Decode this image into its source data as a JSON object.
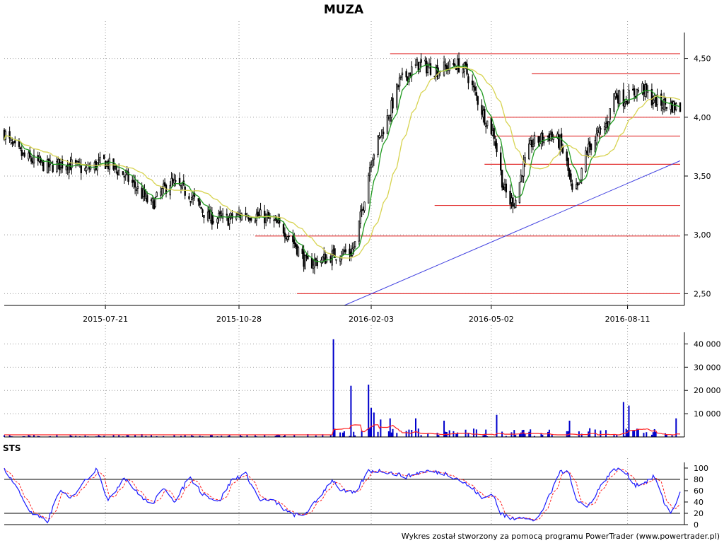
{
  "title": "MUZA",
  "footer": "Wykres został stworzony za pomocą programu PowerTrader (www.powertrader.pl)",
  "colors": {
    "candle": "#000000",
    "sma_fast": "#1f9a1f",
    "sma_slow": "#d7d350",
    "resistance": "#e23030",
    "trendline": "#4040e0",
    "volume_bar": "#0000cc",
    "volume_avg": "#ff2020",
    "sts_k": "#1a1aff",
    "sts_d": "#ff2020",
    "grid": "#999999"
  },
  "chart_data": [
    {
      "id": "price",
      "type": "candlestick",
      "title": "MUZA",
      "x_range": [
        "2015-05-07",
        "2016-09-19"
      ],
      "x_ticks": [
        "2015-07-21",
        "2015-10-28",
        "2016-02-03",
        "2016-05-02",
        "2016-08-11"
      ],
      "ylim": [
        2.4,
        4.72
      ],
      "y_ticks": [
        2.5,
        3.0,
        3.5,
        4.0,
        4.5
      ],
      "y_tick_labels": [
        "2,50",
        "3,00",
        "3,50",
        "4,00",
        "4,50"
      ],
      "grid": true,
      "close_keypoints": [
        [
          "2015-05-07",
          3.87
        ],
        [
          "2015-05-13",
          3.75
        ],
        [
          "2015-05-22",
          3.66
        ],
        [
          "2015-06-08",
          3.58
        ],
        [
          "2015-06-22",
          3.61
        ],
        [
          "2015-07-06",
          3.55
        ],
        [
          "2015-07-20",
          3.62
        ],
        [
          "2015-08-03",
          3.52
        ],
        [
          "2015-08-13",
          3.4
        ],
        [
          "2015-08-24",
          3.25
        ],
        [
          "2015-09-07",
          3.45
        ],
        [
          "2015-09-21",
          3.35
        ],
        [
          "2015-10-05",
          3.15
        ],
        [
          "2015-10-19",
          3.13
        ],
        [
          "2015-11-02",
          3.18
        ],
        [
          "2015-11-16",
          3.15
        ],
        [
          "2015-11-30",
          3.05
        ],
        [
          "2015-12-07",
          2.95
        ],
        [
          "2015-12-17",
          2.75
        ],
        [
          "2015-12-31",
          2.8
        ],
        [
          "2016-01-11",
          2.85
        ],
        [
          "2016-01-19",
          2.85
        ],
        [
          "2016-01-22",
          2.92
        ],
        [
          "2016-01-27",
          3.2
        ],
        [
          "2016-02-03",
          3.65
        ],
        [
          "2016-02-10",
          3.85
        ],
        [
          "2016-02-17",
          4.05
        ],
        [
          "2016-02-24",
          4.3
        ],
        [
          "2016-03-09",
          4.45
        ],
        [
          "2016-03-23",
          4.4
        ],
        [
          "2016-04-06",
          4.45
        ],
        [
          "2016-04-13",
          4.4
        ],
        [
          "2016-04-20",
          4.2
        ],
        [
          "2016-04-27",
          4.0
        ],
        [
          "2016-05-04",
          3.85
        ],
        [
          "2016-05-11",
          3.4
        ],
        [
          "2016-05-16",
          3.28
        ],
        [
          "2016-05-20",
          3.3
        ],
        [
          "2016-05-25",
          3.55
        ],
        [
          "2016-06-01",
          3.78
        ],
        [
          "2016-06-15",
          3.85
        ],
        [
          "2016-06-22",
          3.78
        ],
        [
          "2016-06-27",
          3.6
        ],
        [
          "2016-07-01",
          3.35
        ],
        [
          "2016-07-06",
          3.4
        ],
        [
          "2016-07-11",
          3.7
        ],
        [
          "2016-07-20",
          3.85
        ],
        [
          "2016-07-27",
          3.95
        ],
        [
          "2016-08-01",
          4.2
        ],
        [
          "2016-08-08",
          4.15
        ],
        [
          "2016-08-15",
          4.2
        ],
        [
          "2016-08-22",
          4.25
        ],
        [
          "2016-08-29",
          4.15
        ],
        [
          "2016-09-05",
          4.12
        ],
        [
          "2016-09-12",
          4.1
        ],
        [
          "2016-09-19",
          4.08
        ]
      ],
      "horizontal_levels": [
        {
          "y": 4.54,
          "from": "2016-02-17",
          "to": "2016-09-19"
        },
        {
          "y": 4.37,
          "from": "2016-06-01",
          "to": "2016-09-19"
        },
        {
          "y": 4.0,
          "from": "2016-04-29",
          "to": "2016-09-19"
        },
        {
          "y": 3.84,
          "from": "2016-05-04",
          "to": "2016-09-19"
        },
        {
          "y": 3.6,
          "from": "2016-04-27",
          "to": "2016-09-19"
        },
        {
          "y": 3.25,
          "from": "2016-03-21",
          "to": "2016-09-19"
        },
        {
          "y": 2.99,
          "from": "2015-11-09",
          "to": "2016-09-19"
        },
        {
          "y": 2.5,
          "from": "2015-12-10",
          "to": "2016-09-19"
        }
      ],
      "trendline": {
        "from": [
          "2016-01-14",
          2.4
        ],
        "to": [
          "2016-09-19",
          3.63
        ]
      }
    },
    {
      "id": "volume",
      "type": "bar",
      "ylim": [
        0,
        45000
      ],
      "y_ticks": [
        10000,
        20000,
        30000,
        40000
      ],
      "y_tick_labels": [
        "10 000",
        "20 000",
        "30 000",
        "40 000"
      ],
      "grid": true,
      "spikes": [
        [
          "2016-01-06",
          42000
        ],
        [
          "2016-01-19",
          22000
        ],
        [
          "2016-02-01",
          22500
        ],
        [
          "2016-02-03",
          12500
        ],
        [
          "2016-02-05",
          10500
        ],
        [
          "2016-02-10",
          7500
        ],
        [
          "2016-02-17",
          8000
        ],
        [
          "2016-03-07",
          8000
        ],
        [
          "2016-03-28",
          7000
        ],
        [
          "2016-05-06",
          9500
        ],
        [
          "2016-06-29",
          7000
        ],
        [
          "2016-08-08",
          15000
        ],
        [
          "2016-08-12",
          13500
        ],
        [
          "2016-09-16",
          8000
        ]
      ],
      "base_level": 1500
    },
    {
      "id": "sts",
      "type": "line",
      "title": "STS",
      "ylim": [
        0,
        105
      ],
      "y_ticks": [
        0,
        20,
        40,
        60,
        80,
        100
      ],
      "y_tick_labels": [
        "0",
        "20",
        "40",
        "60",
        "80",
        "100"
      ],
      "reference_lines": [
        20,
        80
      ],
      "series": [
        {
          "name": "",
          "keypoints": [
            [
              "2015-05-07",
              100
            ],
            [
              "2015-05-15",
              70
            ],
            [
              "2015-05-27",
              20
            ],
            [
              "2015-06-08",
              5
            ],
            [
              "2015-06-17",
              60
            ],
            [
              "2015-06-25",
              45
            ],
            [
              "2015-07-03",
              70
            ],
            [
              "2015-07-15",
              100
            ],
            [
              "2015-07-23",
              40
            ],
            [
              "2015-08-04",
              85
            ],
            [
              "2015-08-14",
              55
            ],
            [
              "2015-08-24",
              35
            ],
            [
              "2015-09-03",
              65
            ],
            [
              "2015-09-11",
              40
            ],
            [
              "2015-09-21",
              85
            ],
            [
              "2015-10-01",
              55
            ],
            [
              "2015-10-13",
              40
            ],
            [
              "2015-10-23",
              80
            ],
            [
              "2015-11-02",
              90
            ],
            [
              "2015-11-12",
              45
            ],
            [
              "2015-11-24",
              40
            ],
            [
              "2015-12-04",
              20
            ],
            [
              "2015-12-14",
              15
            ],
            [
              "2015-12-24",
              40
            ],
            [
              "2016-01-05",
              80
            ],
            [
              "2016-01-12",
              60
            ],
            [
              "2016-01-22",
              55
            ],
            [
              "2016-02-01",
              95
            ],
            [
              "2016-02-12",
              95
            ],
            [
              "2016-02-29",
              85
            ],
            [
              "2016-03-14",
              95
            ],
            [
              "2016-03-30",
              90
            ],
            [
              "2016-04-08",
              80
            ],
            [
              "2016-04-20",
              60
            ],
            [
              "2016-04-25",
              45
            ],
            [
              "2016-05-03",
              55
            ],
            [
              "2016-05-09",
              20
            ],
            [
              "2016-05-16",
              10
            ],
            [
              "2016-05-25",
              15
            ],
            [
              "2016-06-03",
              5
            ],
            [
              "2016-06-10",
              30
            ],
            [
              "2016-06-16",
              60
            ],
            [
              "2016-06-22",
              95
            ],
            [
              "2016-06-29",
              90
            ],
            [
              "2016-07-04",
              45
            ],
            [
              "2016-07-12",
              30
            ],
            [
              "2016-07-20",
              60
            ],
            [
              "2016-07-27",
              85
            ],
            [
              "2016-08-03",
              100
            ],
            [
              "2016-08-10",
              90
            ],
            [
              "2016-08-17",
              70
            ],
            [
              "2016-08-24",
              75
            ],
            [
              "2016-08-31",
              85
            ],
            [
              "2016-09-07",
              40
            ],
            [
              "2016-09-12",
              20
            ],
            [
              "2016-09-19",
              55
            ]
          ]
        }
      ]
    }
  ]
}
